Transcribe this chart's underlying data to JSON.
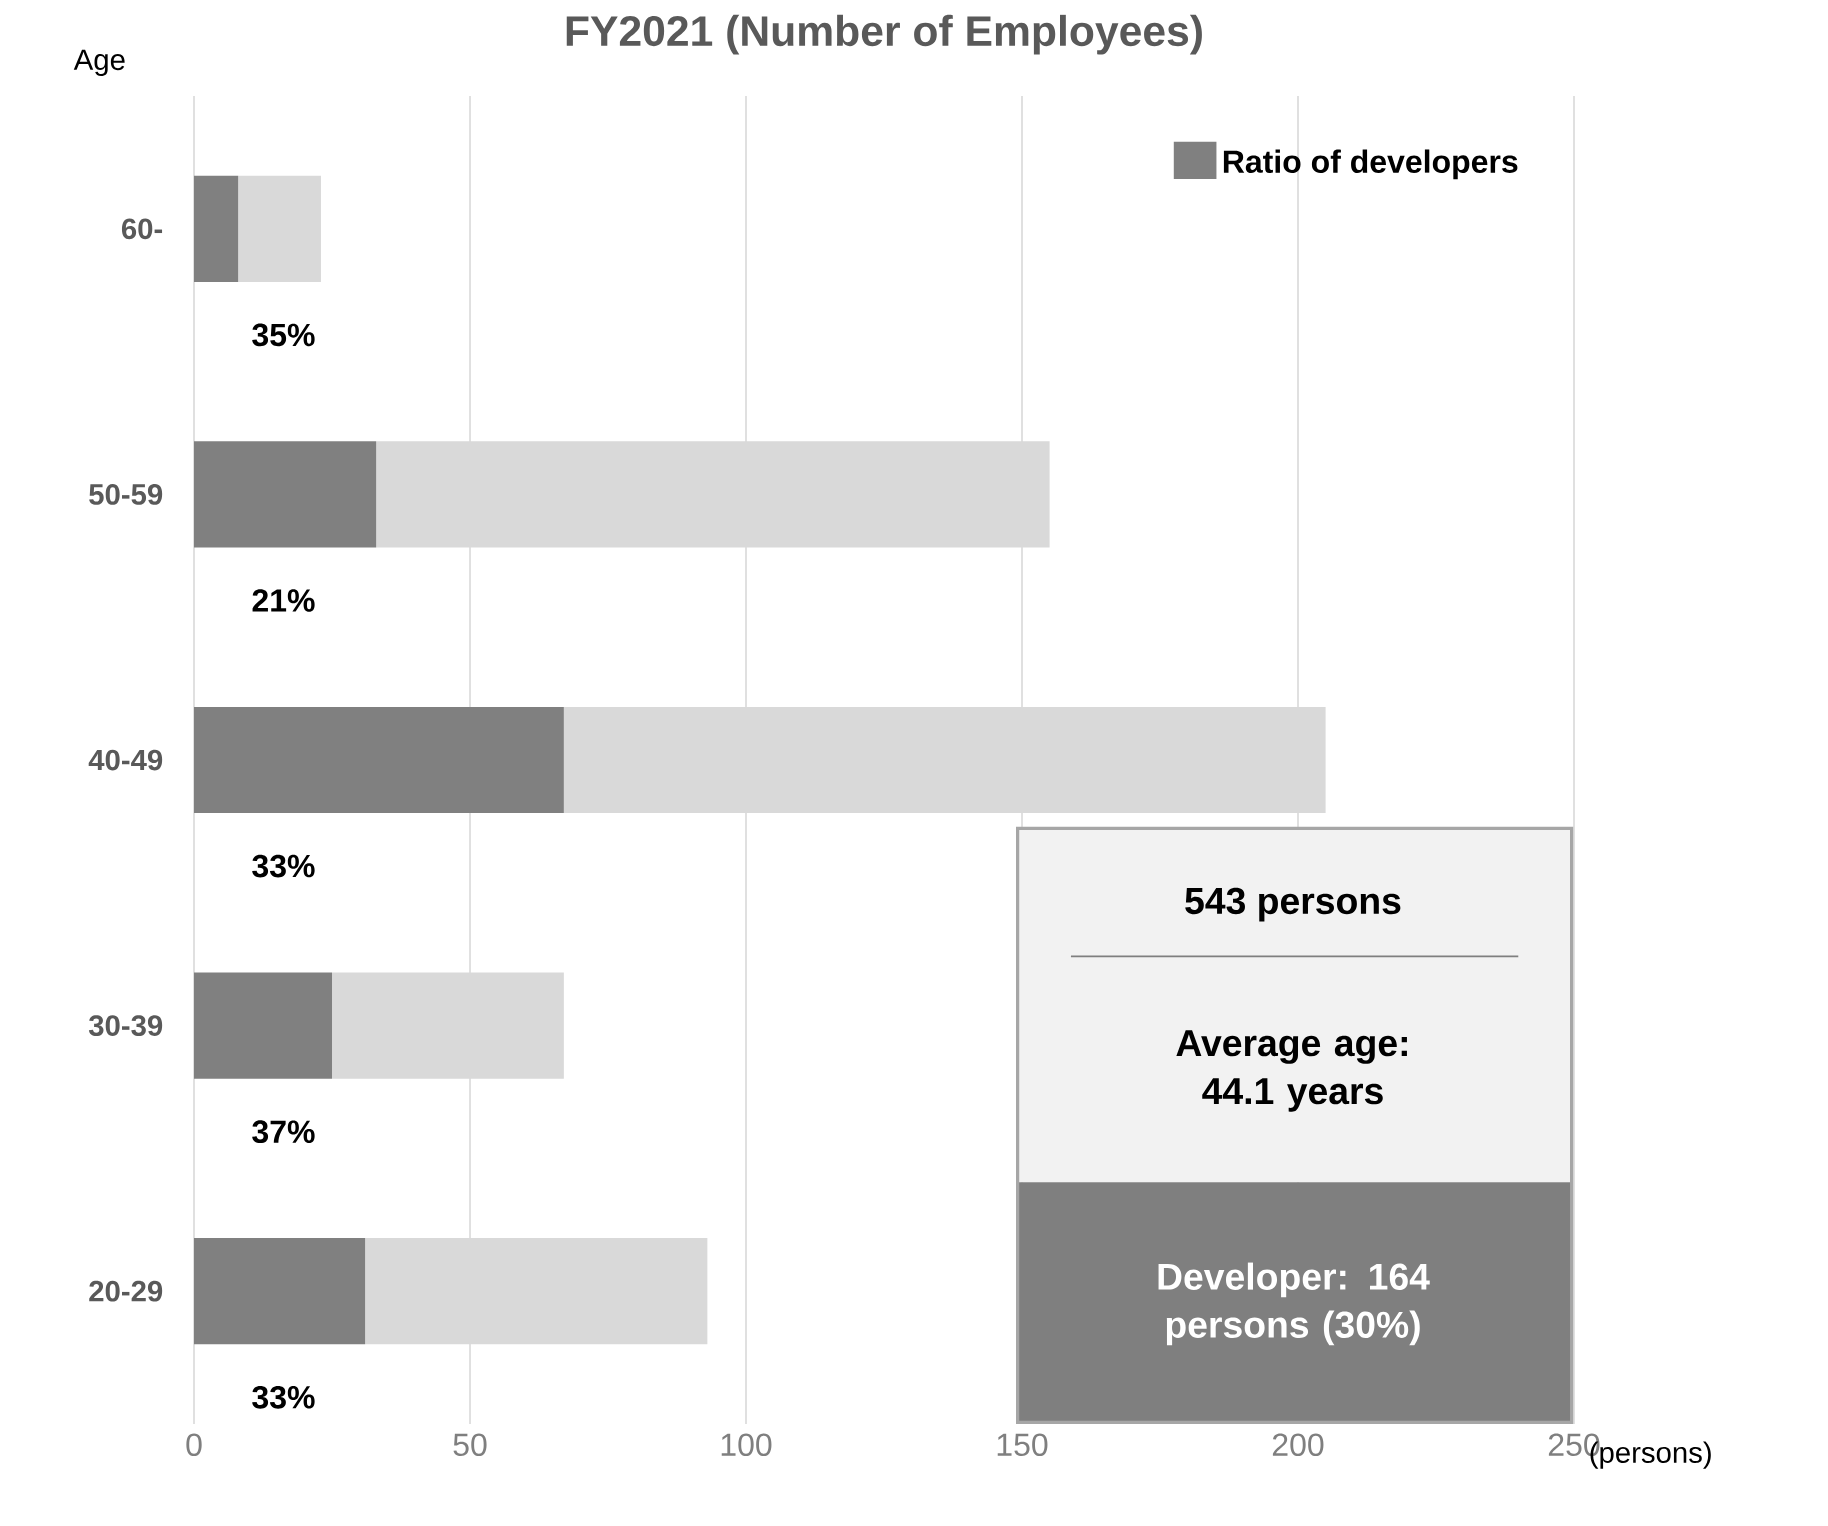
{
  "chart_data": {
    "type": "bar",
    "orientation": "horizontal",
    "stacked": true,
    "title": "FY2021 (Number of Employees)",
    "xlabel": "(persons)",
    "ylabel": "Age",
    "categories": [
      "60-",
      "50-59",
      "40-49",
      "30-39",
      "20-29"
    ],
    "series": [
      {
        "name": "Ratio of developers",
        "color": "#808080",
        "values": [
          8,
          33,
          67,
          25,
          31
        ]
      },
      {
        "color": "#d9d9d9",
        "values": [
          15,
          122,
          138,
          42,
          62
        ]
      }
    ],
    "xlim": [
      0,
      250
    ],
    "xticks": [
      0,
      50,
      100,
      150,
      200,
      250
    ],
    "grid": "x",
    "legend": "top right",
    "annotations": [
      "35%",
      "21%",
      "33%",
      "37%",
      "33%",
      "543 persons",
      "Average age: 44.1 years",
      "Developer: 164 persons (30%)"
    ]
  }
}
